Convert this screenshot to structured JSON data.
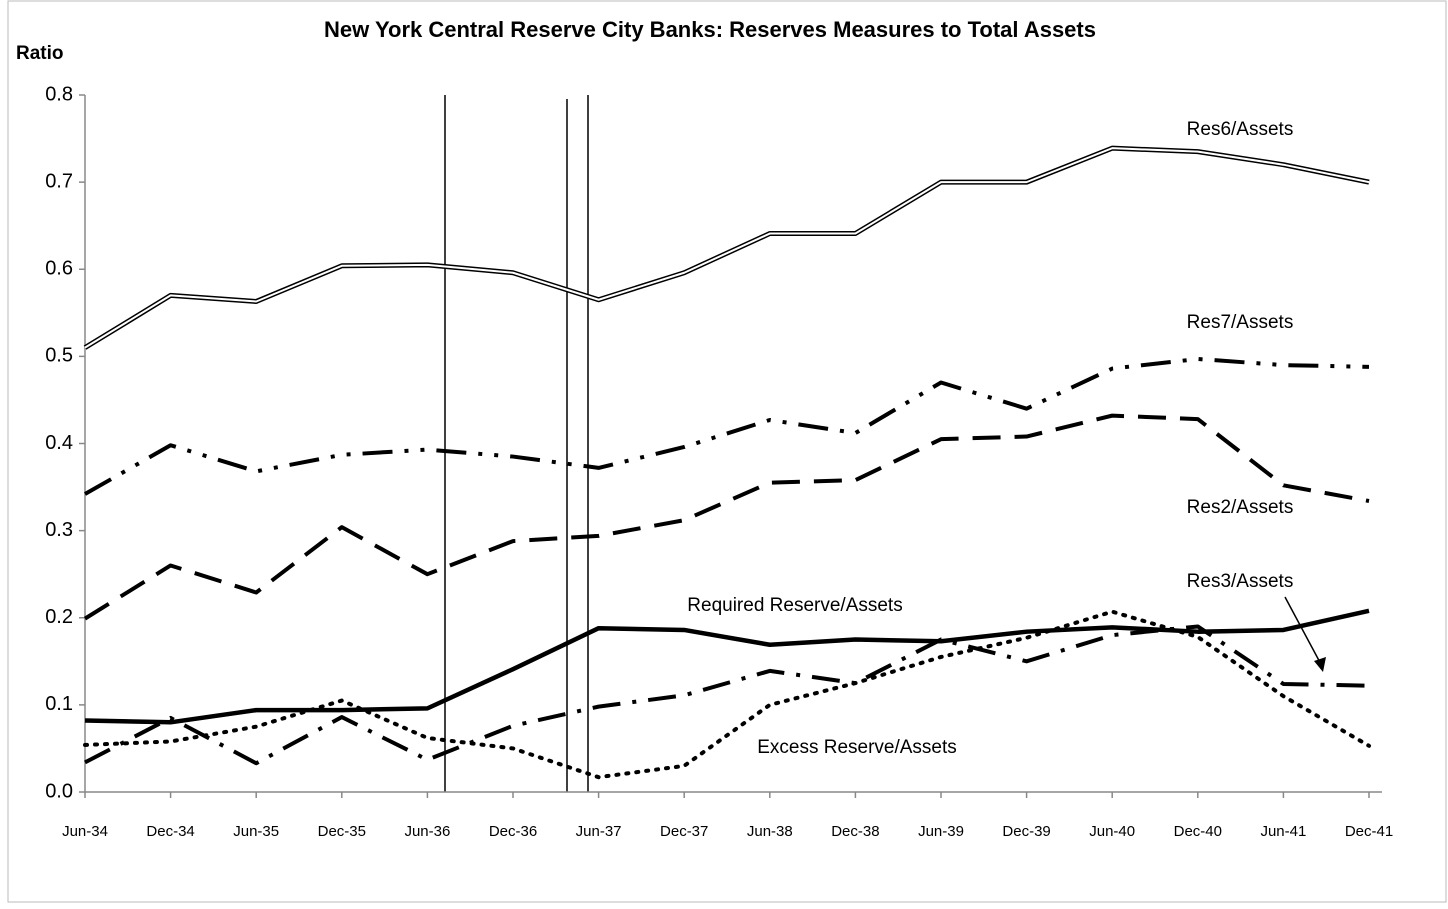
{
  "chart_data": {
    "type": "line",
    "title": "New York Central Reserve City Banks: Reserves Measures to Total Assets",
    "ylabel": "Ratio",
    "categories": [
      "Jun-34",
      "Dec-34",
      "Jun-35",
      "Dec-35",
      "Jun-36",
      "Dec-36",
      "Jun-37",
      "Dec-37",
      "Jun-38",
      "Dec-38",
      "Jun-39",
      "Dec-39",
      "Jun-40",
      "Dec-40",
      "Jun-41",
      "Dec-41"
    ],
    "ylim": [
      0,
      0.8
    ],
    "yticks": [
      {
        "value": 0,
        "label": "0.0"
      },
      0.1,
      0.2,
      0.3,
      0.4,
      0.5,
      0.6,
      0.7,
      0.8
    ],
    "grid": false,
    "series": [
      {
        "name": "Res6/Assets",
        "color": "#000000",
        "values": [
          0.51,
          0.57,
          0.563,
          0.604,
          0.605,
          0.596,
          0.565,
          0.596,
          0.641,
          0.641,
          0.7,
          0.7,
          0.739,
          0.735,
          0.72,
          0.7
        ]
      },
      {
        "name": "Res7/Assets",
        "color": "#000000",
        "values": [
          0.342,
          0.398,
          0.368,
          0.387,
          0.393,
          0.385,
          0.372,
          0.396,
          0.427,
          0.412,
          0.47,
          0.44,
          0.486,
          0.497,
          0.49,
          0.488
        ]
      },
      {
        "name": "Res2/Assets",
        "color": "#000000",
        "values": [
          0.199,
          0.26,
          0.229,
          0.304,
          0.25,
          0.288,
          0.294,
          0.312,
          0.355,
          0.358,
          0.405,
          0.408,
          0.432,
          0.428,
          0.352,
          0.334
        ]
      },
      {
        "name": "Required Reserve/Assets",
        "color": "#000000",
        "values": [
          0.082,
          0.08,
          0.094,
          0.094,
          0.096,
          0.141,
          0.188,
          0.186,
          0.169,
          0.175,
          0.173,
          0.184,
          0.189,
          0.184,
          0.186,
          0.208
        ]
      },
      {
        "name": "Res3/Assets",
        "color": "#000000",
        "values": [
          0.034,
          0.085,
          0.033,
          0.086,
          0.037,
          0.076,
          0.098,
          0.111,
          0.139,
          0.125,
          0.175,
          0.15,
          0.18,
          0.19,
          0.124,
          0.122
        ]
      },
      {
        "name": "Excess Reserve/Assets",
        "color": "#000000",
        "values": [
          0.054,
          0.058,
          0.075,
          0.105,
          0.062,
          0.05,
          0.017,
          0.03,
          0.1,
          0.125,
          0.155,
          0.177,
          0.207,
          0.178,
          0.11,
          0.053
        ]
      }
    ]
  }
}
